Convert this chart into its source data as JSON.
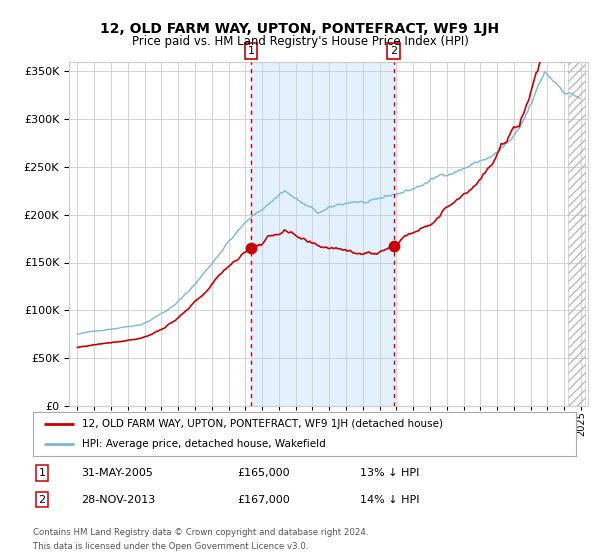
{
  "title": "12, OLD FARM WAY, UPTON, PONTEFRACT, WF9 1JH",
  "subtitle": "Price paid vs. HM Land Registry's House Price Index (HPI)",
  "legend_line1": "12, OLD FARM WAY, UPTON, PONTEFRACT, WF9 1JH (detached house)",
  "legend_line2": "HPI: Average price, detached house, Wakefield",
  "sale1_date_label": "31-MAY-2005",
  "sale1_price": 165000,
  "sale1_label": "13% ↓ HPI",
  "sale2_date_label": "28-NOV-2013",
  "sale2_price": 167000,
  "sale2_label": "14% ↓ HPI",
  "footnote1": "Contains HM Land Registry data © Crown copyright and database right 2024.",
  "footnote2": "This data is licensed under the Open Government Licence v3.0.",
  "hpi_color": "#7ab8d9",
  "price_color": "#cc0000",
  "vline_color": "#cc0000",
  "shade_color": "#ddeeff",
  "ylim": [
    0,
    360000
  ],
  "yticks": [
    0,
    50000,
    100000,
    150000,
    200000,
    250000,
    300000,
    350000
  ],
  "background_color": "#ffffff",
  "grid_color": "#cccccc"
}
